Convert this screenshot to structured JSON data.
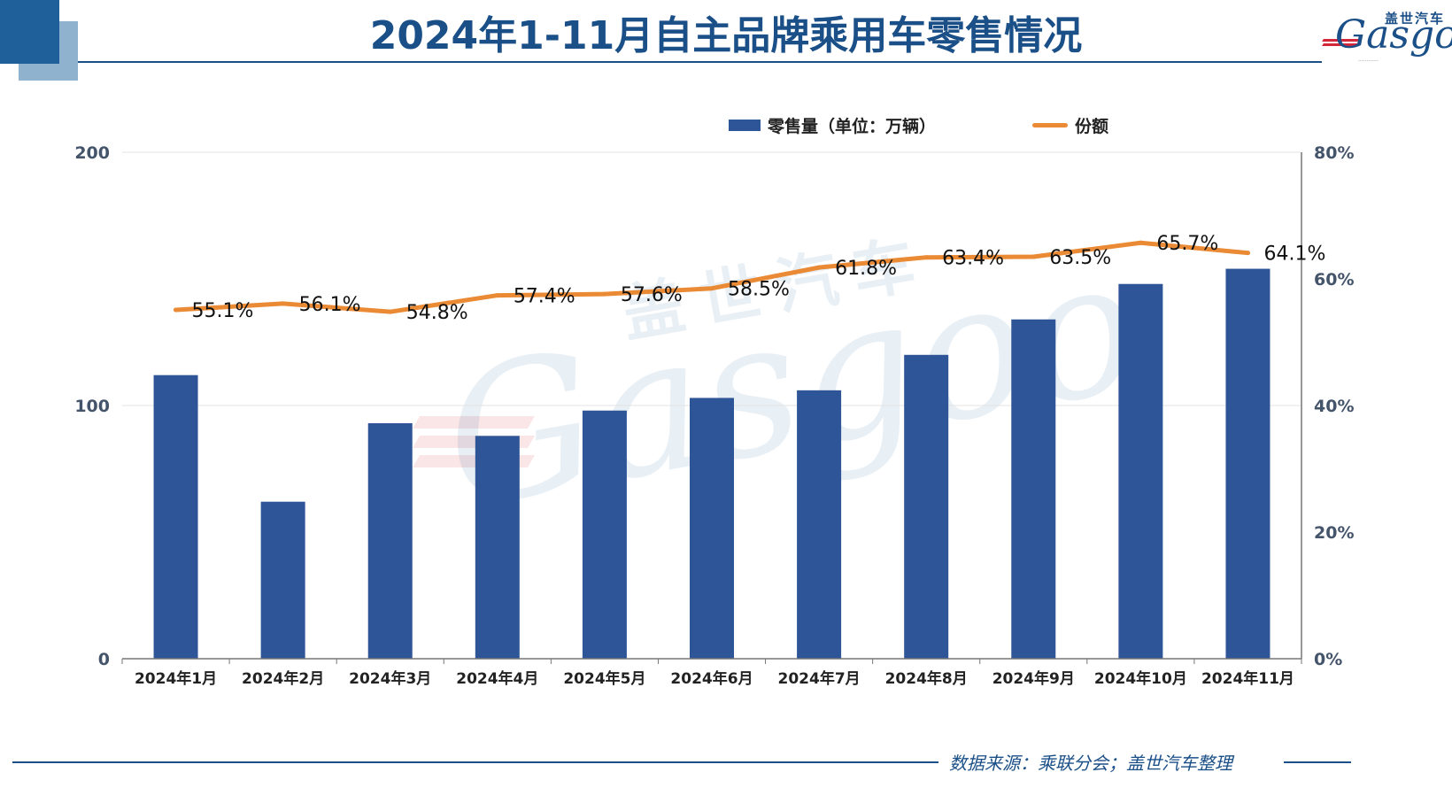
{
  "title": "2024年1-11月自主品牌乘用车零售情况",
  "logo": {
    "cn": "盖世汽车",
    "en": "Gasgoo"
  },
  "source": "数据来源：乘联分会；盖世汽车整理",
  "colors": {
    "bar": "#2e5597",
    "line": "#ea8a34",
    "title": "#1a4f87"
  },
  "chart_data": {
    "type": "bar",
    "categories": [
      "2024年1月",
      "2024年2月",
      "2024年3月",
      "2024年4月",
      "2024年5月",
      "2024年6月",
      "2024年7月",
      "2024年8月",
      "2024年9月",
      "2024年10月",
      "2024年11月"
    ],
    "series": [
      {
        "name": "零售量（单位：万辆）",
        "type": "bar",
        "axis": "left",
        "values": [
          112,
          62,
          93,
          88,
          98,
          103,
          106,
          120,
          134,
          148,
          154
        ]
      },
      {
        "name": "份额",
        "type": "line",
        "axis": "right",
        "values": [
          55.1,
          56.1,
          54.8,
          57.4,
          57.6,
          58.5,
          61.8,
          63.4,
          63.5,
          65.7,
          64.1
        ],
        "labels": [
          "55.1%",
          "56.1%",
          "54.8%",
          "57.4%",
          "57.6%",
          "58.5%",
          "61.8%",
          "63.4%",
          "63.5%",
          "65.7%",
          "64.1%"
        ]
      }
    ],
    "y_left": {
      "min": 0,
      "max": 200,
      "ticks": [
        "0",
        "100",
        "200"
      ],
      "tick_values": [
        0,
        100,
        200
      ]
    },
    "y_right": {
      "min": 0,
      "max": 80,
      "ticks": [
        "0%",
        "20%",
        "40%",
        "60%",
        "80%"
      ],
      "tick_values": [
        0,
        20,
        40,
        60,
        80
      ]
    },
    "grid": true,
    "legend_position": "top-right"
  }
}
